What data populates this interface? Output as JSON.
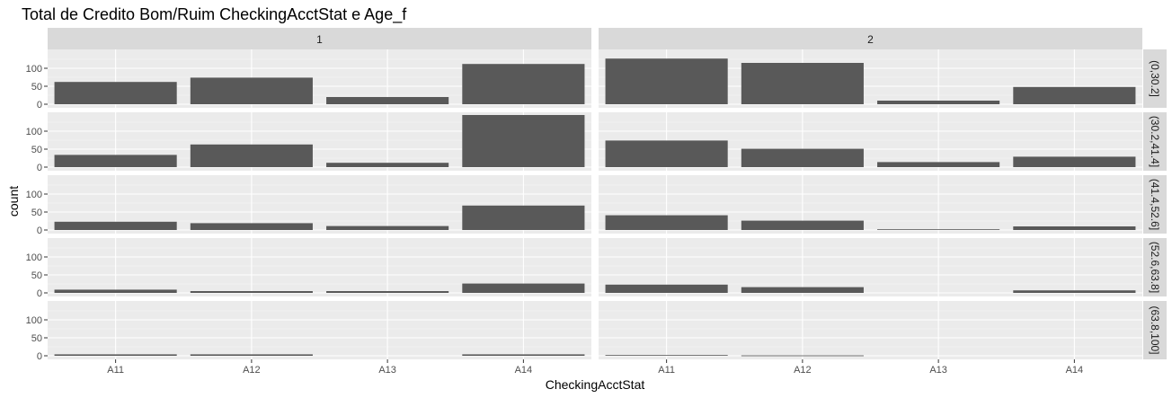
{
  "chart_data": {
    "type": "bar",
    "title": "Total de Credito Bom/Ruim CheckingAcctStat e Age_f",
    "xlabel": "CheckingAcctStat",
    "ylabel": "count",
    "categories": [
      "A11",
      "A12",
      "A13",
      "A14"
    ],
    "col_facets": [
      "1",
      "2"
    ],
    "row_facets": [
      "(0,30.2]",
      "(30.2,41.4]",
      "(41.4,52.6]",
      "(52.6,63.8]",
      "(63.8,100]"
    ],
    "ylim": [
      0,
      150
    ],
    "yticks": [
      0,
      50,
      100
    ],
    "bar_color": "#595959",
    "panel_background": "#ebebeb",
    "strip_background": "#d9d9d9",
    "grid": true,
    "values": [
      [
        [
          62,
          74,
          20,
          112
        ],
        [
          127,
          115,
          10,
          48
        ]
      ],
      [
        [
          34,
          63,
          12,
          145
        ],
        [
          74,
          51,
          14,
          29
        ]
      ],
      [
        [
          23,
          19,
          11,
          68
        ],
        [
          41,
          26,
          2,
          10
        ]
      ],
      [
        [
          9,
          5,
          5,
          26
        ],
        [
          23,
          16,
          0,
          7
        ]
      ],
      [
        [
          4,
          4,
          0,
          4
        ],
        [
          2,
          1,
          0,
          0
        ]
      ]
    ]
  }
}
